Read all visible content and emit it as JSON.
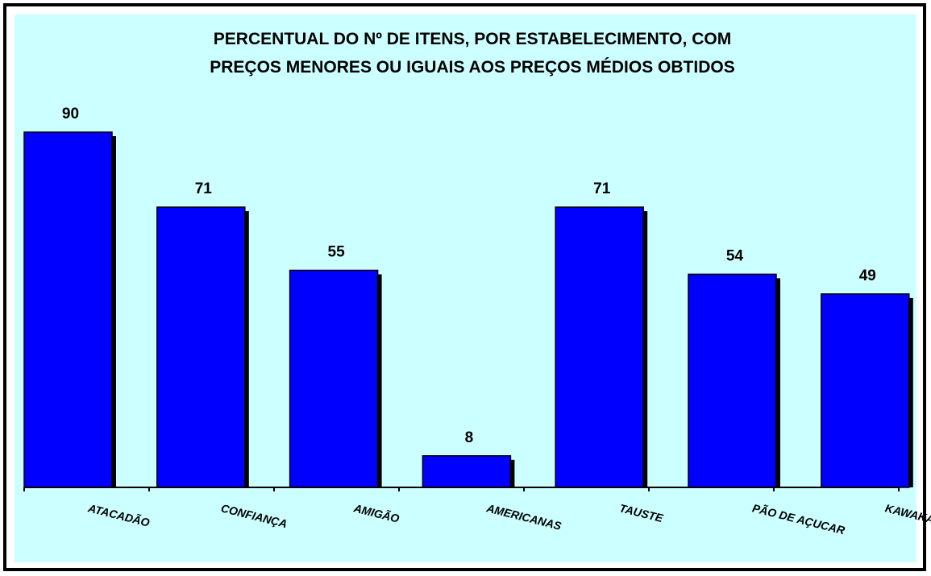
{
  "colors": {
    "plot_background": "#ccffff",
    "bar_fill": "#0000ff",
    "bar_shadow": "#000000",
    "border": "#000000"
  },
  "chart_data": {
    "type": "bar",
    "title": "PERCENTUAL DO Nº DE ITENS, POR ESTABELECIMENTO, COM PREÇOS MENORES OU IGUAIS AOS PREÇOS MÉDIOS OBTIDOS",
    "title_lines": [
      "PERCENTUAL DO Nº DE ITENS, POR ESTABELECIMENTO, COM",
      "PREÇOS MENORES OU IGUAIS AOS PREÇOS MÉDIOS OBTIDOS"
    ],
    "categories": [
      "ATACADÃO",
      "CONFIANÇA",
      "AMIGÃO",
      "AMERICANAS",
      "TAUSTE",
      "PÃO DE AÇUCAR",
      "KAWAKAMI"
    ],
    "values": [
      90,
      71,
      55,
      8,
      71,
      54,
      49
    ],
    "value_labels": [
      "90",
      "71",
      "55",
      "8",
      "71",
      "54",
      "49"
    ],
    "xlabel": "",
    "ylabel": "",
    "ylim": [
      0,
      90
    ],
    "grid": false,
    "legend": "none",
    "data_labels": "above-bars",
    "category_label_rotation": "slanted"
  }
}
